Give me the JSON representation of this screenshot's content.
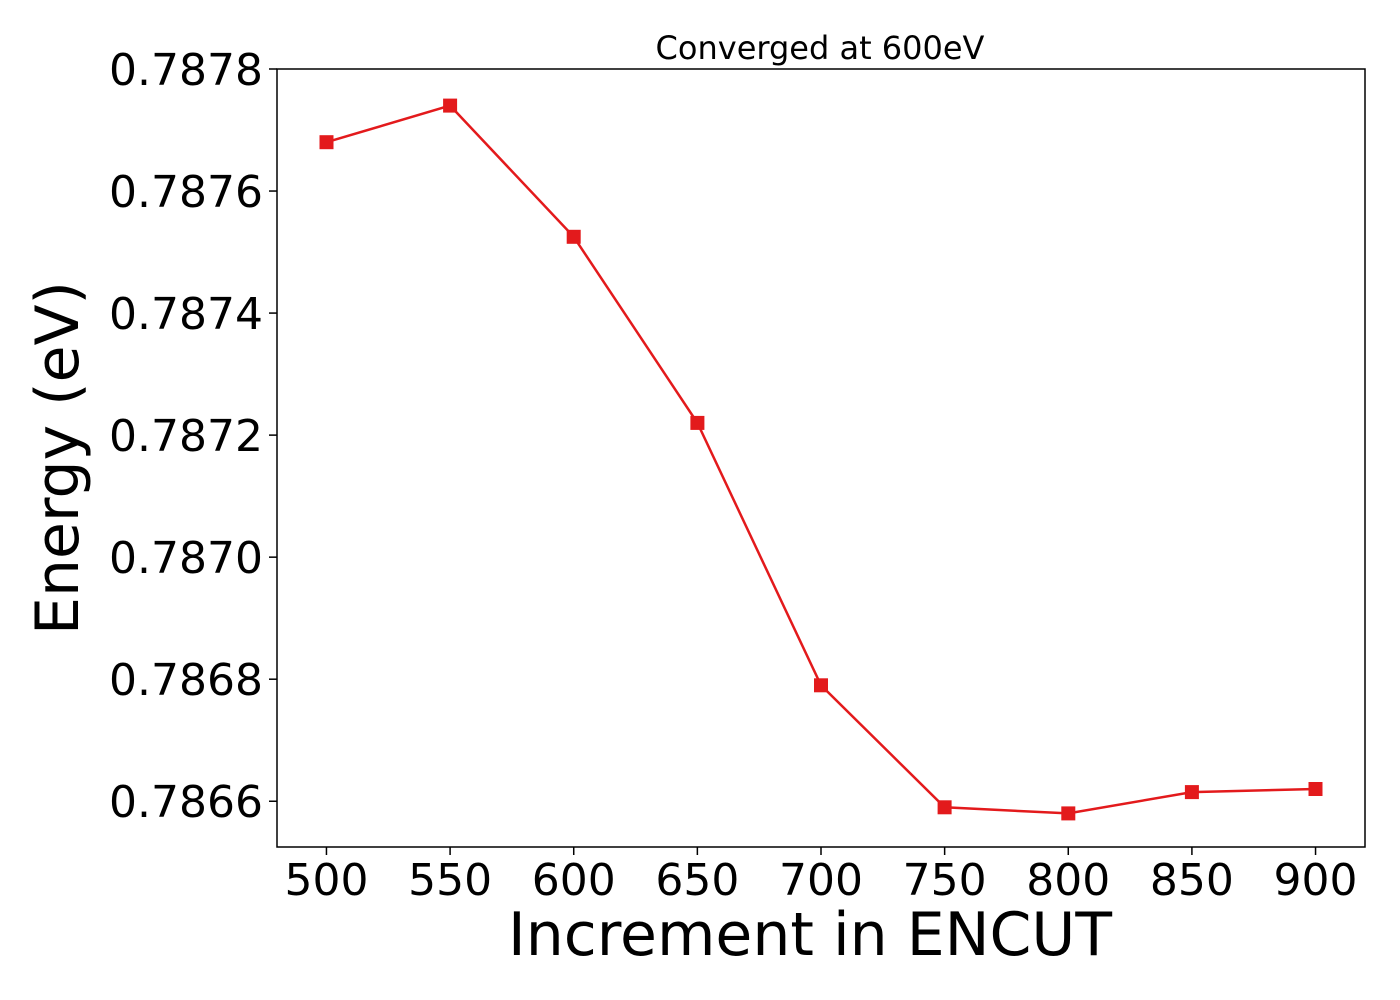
{
  "chart_data": {
    "type": "line",
    "title": "Converged at 600eV",
    "xlabel": "Increment in ENCUT",
    "ylabel": "Energy (eV)",
    "x": [
      500,
      550,
      600,
      650,
      700,
      750,
      800,
      850,
      900
    ],
    "series": [
      {
        "values": [
          0.78768,
          0.78774,
          0.787525,
          0.78722,
          0.78679,
          0.78659,
          0.78658,
          0.786615,
          0.78662
        ],
        "color": "#e31a1c",
        "marker": "square"
      }
    ],
    "xticks": [
      "500",
      "550",
      "600",
      "650",
      "700",
      "750",
      "800",
      "850",
      "900"
    ],
    "yticks": [
      "0.7866",
      "0.7868",
      "0.7870",
      "0.7872",
      "0.7874",
      "0.7876",
      "0.7878"
    ],
    "xlim": [
      480,
      920
    ],
    "ylim": [
      0.786525,
      0.7878
    ],
    "grid": false
  }
}
